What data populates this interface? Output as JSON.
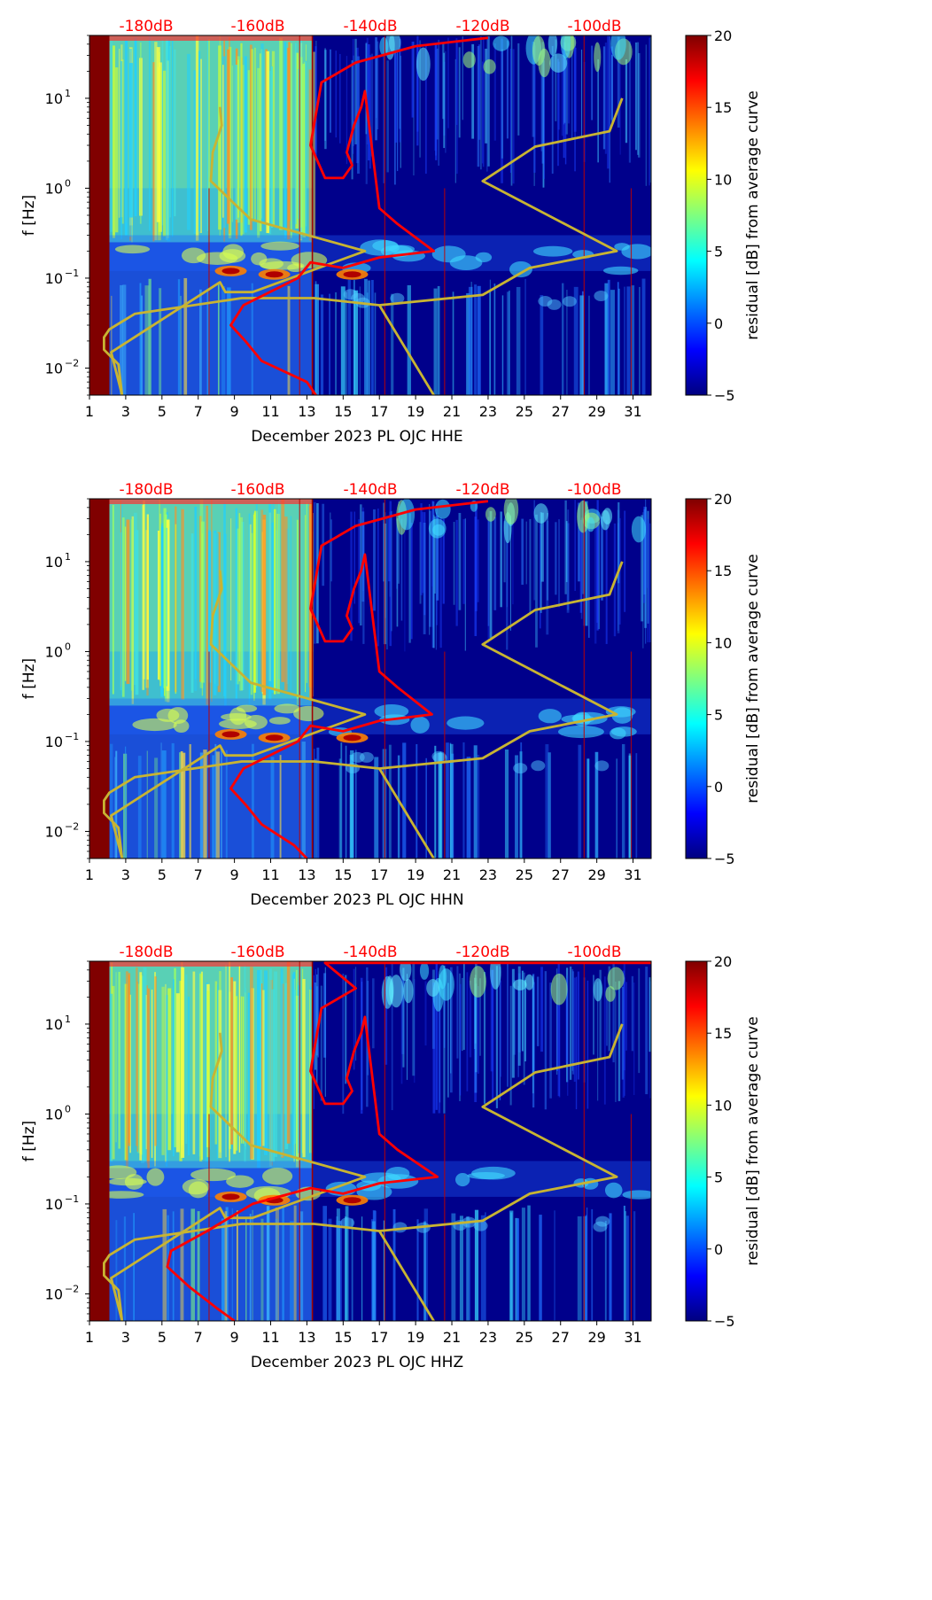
{
  "colors": {
    "background_color": "#00008b",
    "pre_window_color": "#800000",
    "psd_curve_color": "#ff0000",
    "model_curve_color": "#c8b432",
    "db_label_color": "#ff0000"
  },
  "colormap": [
    "#00007f",
    "#0000ff",
    "#007fff",
    "#00ffff",
    "#7fff7f",
    "#ffff00",
    "#ff7f00",
    "#ff0000",
    "#7f0000"
  ],
  "chart_data": [
    {
      "type": "heatmap",
      "channel": "HHE",
      "xlabel": "December 2023 PL OJC  HHE",
      "ylabel": "f [Hz]",
      "x_range": [
        1,
        32
      ],
      "x_ticks": [
        "1",
        "3",
        "5",
        "7",
        "9",
        "11",
        "13",
        "15",
        "17",
        "19",
        "21",
        "23",
        "25",
        "27",
        "29",
        "31"
      ],
      "y_range": [
        0.005,
        50
      ],
      "y_ticks": [
        {
          "label": "10",
          "exp": "−2"
        },
        {
          "label": "10",
          "exp": "−1"
        },
        {
          "label": "10",
          "exp": "0"
        },
        {
          "label": "10",
          "exp": "1"
        }
      ],
      "db_axis": [
        "-180dB",
        "-160dB",
        "-140dB",
        "-120dB",
        "-100dB"
      ],
      "colorbar": {
        "label": "residual [dB] from average curve",
        "range": [
          -5,
          20
        ],
        "ticks": [
          "−5",
          "0",
          "5",
          "10",
          "15",
          "20"
        ]
      },
      "noisy_period_days": [
        2.1,
        13.3
      ],
      "overlay_curves": {
        "psd": {
          "x_days": [
            23,
            19,
            15.7,
            13.8,
            13.2,
            14,
            15,
            15.5,
            15.2,
            15.6,
            16,
            16.2,
            17,
            18,
            20,
            17,
            15,
            13.2,
            12.5,
            9.5,
            8.8,
            9.6,
            10.5,
            13,
            13.5
          ],
          "freq_hz": [
            47,
            38,
            25,
            15,
            3,
            1.3,
            1.3,
            1.8,
            2.5,
            5,
            8,
            12,
            0.6,
            0.4,
            0.2,
            0.17,
            0.13,
            0.15,
            0.1,
            0.05,
            0.03,
            0.02,
            0.012,
            0.007,
            0.005
          ]
        },
        "model": {
          "x_days": [
            30.4,
            29.7,
            25.6,
            22.7,
            30.1,
            25.3,
            22.7,
            17,
            20,
            17,
            13.4,
            9.4,
            3.5,
            2.1,
            1.8,
            1.8,
            2.6,
            2.8,
            2.2,
            8.2,
            8.5,
            10,
            16.2,
            9.9,
            7.7,
            7.8,
            8.3,
            8.2
          ],
          "freq_hz": [
            10,
            4.3,
            2.9,
            1.2,
            0.2,
            0.13,
            0.065,
            0.05,
            0.005,
            0.05,
            0.06,
            0.06,
            0.04,
            0.027,
            0.022,
            0.016,
            0.011,
            0.005,
            0.015,
            0.09,
            0.07,
            0.07,
            0.2,
            0.45,
            1.2,
            2.5,
            5,
            8
          ]
        }
      }
    },
    {
      "type": "heatmap",
      "channel": "HHN",
      "xlabel": "December 2023 PL OJC  HHN",
      "ylabel": "f [Hz]",
      "x_range": [
        1,
        32
      ],
      "x_ticks": [
        "1",
        "3",
        "5",
        "7",
        "9",
        "11",
        "13",
        "15",
        "17",
        "19",
        "21",
        "23",
        "25",
        "27",
        "29",
        "31"
      ],
      "y_range": [
        0.005,
        50
      ],
      "y_ticks": [
        {
          "label": "10",
          "exp": "−2"
        },
        {
          "label": "10",
          "exp": "−1"
        },
        {
          "label": "10",
          "exp": "0"
        },
        {
          "label": "10",
          "exp": "1"
        }
      ],
      "db_axis": [
        "-180dB",
        "-160dB",
        "-140dB",
        "-120dB",
        "-100dB"
      ],
      "colorbar": {
        "label": "residual [dB] from average curve",
        "range": [
          -5,
          20
        ],
        "ticks": [
          "−5",
          "0",
          "5",
          "10",
          "15",
          "20"
        ]
      },
      "noisy_period_days": [
        2.1,
        13.3
      ],
      "overlay_curves": {
        "psd": {
          "x_days": [
            23,
            19,
            15.7,
            13.8,
            13.2,
            14,
            15,
            15.5,
            15.2,
            15.6,
            16,
            16.2,
            17,
            18,
            19.9,
            17,
            15,
            13.2,
            12.5,
            9.5,
            8.8,
            9.6,
            10.5,
            12.3,
            13
          ],
          "freq_hz": [
            47,
            38,
            25,
            15,
            3,
            1.3,
            1.3,
            1.8,
            2.5,
            5,
            8,
            12,
            0.6,
            0.4,
            0.2,
            0.17,
            0.13,
            0.15,
            0.1,
            0.05,
            0.03,
            0.02,
            0.012,
            0.007,
            0.005
          ]
        },
        "model": {
          "x_days": [
            30.4,
            29.7,
            25.6,
            22.7,
            30.1,
            25.3,
            22.7,
            17,
            20,
            17,
            13.4,
            9.4,
            3.5,
            2.1,
            1.8,
            1.8,
            2.6,
            2.8,
            2.2,
            8.2,
            8.5,
            10,
            16.2,
            9.9,
            7.7,
            7.8,
            8.3,
            8.2
          ],
          "freq_hz": [
            10,
            4.3,
            2.9,
            1.2,
            0.2,
            0.13,
            0.065,
            0.05,
            0.005,
            0.05,
            0.06,
            0.06,
            0.04,
            0.027,
            0.022,
            0.016,
            0.011,
            0.005,
            0.015,
            0.09,
            0.07,
            0.07,
            0.2,
            0.45,
            1.2,
            2.5,
            5,
            8
          ]
        }
      }
    },
    {
      "type": "heatmap",
      "channel": "HHZ",
      "xlabel": "December 2023 PL OJC  HHZ",
      "ylabel": "f [Hz]",
      "x_range": [
        1,
        32
      ],
      "x_ticks": [
        "1",
        "3",
        "5",
        "7",
        "9",
        "11",
        "13",
        "15",
        "17",
        "19",
        "21",
        "23",
        "25",
        "27",
        "29",
        "31"
      ],
      "y_range": [
        0.005,
        50
      ],
      "y_ticks": [
        {
          "label": "10",
          "exp": "−2"
        },
        {
          "label": "10",
          "exp": "−1"
        },
        {
          "label": "10",
          "exp": "0"
        },
        {
          "label": "10",
          "exp": "1"
        }
      ],
      "db_axis": [
        "-180dB",
        "-160dB",
        "-140dB",
        "-120dB",
        "-100dB"
      ],
      "colorbar": {
        "label": "residual [dB] from average curve",
        "range": [
          -5,
          20
        ],
        "ticks": [
          "−5",
          "0",
          "5",
          "10",
          "15",
          "20"
        ]
      },
      "noisy_period_days": [
        2.1,
        13.3
      ],
      "overlay_curves": {
        "psd": {
          "x_days": [
            32,
            14,
            15.7,
            13.8,
            13.2,
            14,
            15,
            15.5,
            15.2,
            15.6,
            16,
            16.2,
            17,
            18,
            20.2,
            17,
            15,
            13.2,
            10,
            7.5,
            5.5,
            5.3,
            6.5,
            8,
            9
          ],
          "freq_hz": [
            48,
            48,
            25,
            15,
            3,
            1.3,
            1.3,
            1.8,
            2.5,
            5,
            8,
            12,
            0.6,
            0.4,
            0.2,
            0.17,
            0.13,
            0.15,
            0.1,
            0.05,
            0.03,
            0.02,
            0.012,
            0.007,
            0.005
          ]
        },
        "model": {
          "x_days": [
            30.4,
            29.7,
            25.6,
            22.7,
            30.1,
            25.3,
            22.7,
            17,
            20,
            17,
            13.4,
            9.4,
            3.5,
            2.1,
            1.8,
            1.8,
            2.6,
            2.8,
            2.2,
            8.2,
            8.5,
            10,
            16.2,
            9.9,
            7.7,
            7.8,
            8.3,
            8.2
          ],
          "freq_hz": [
            10,
            4.3,
            2.9,
            1.2,
            0.2,
            0.13,
            0.065,
            0.05,
            0.005,
            0.05,
            0.06,
            0.06,
            0.04,
            0.027,
            0.022,
            0.016,
            0.011,
            0.005,
            0.015,
            0.09,
            0.07,
            0.07,
            0.2,
            0.45,
            1.2,
            2.5,
            5,
            8
          ]
        }
      }
    }
  ]
}
